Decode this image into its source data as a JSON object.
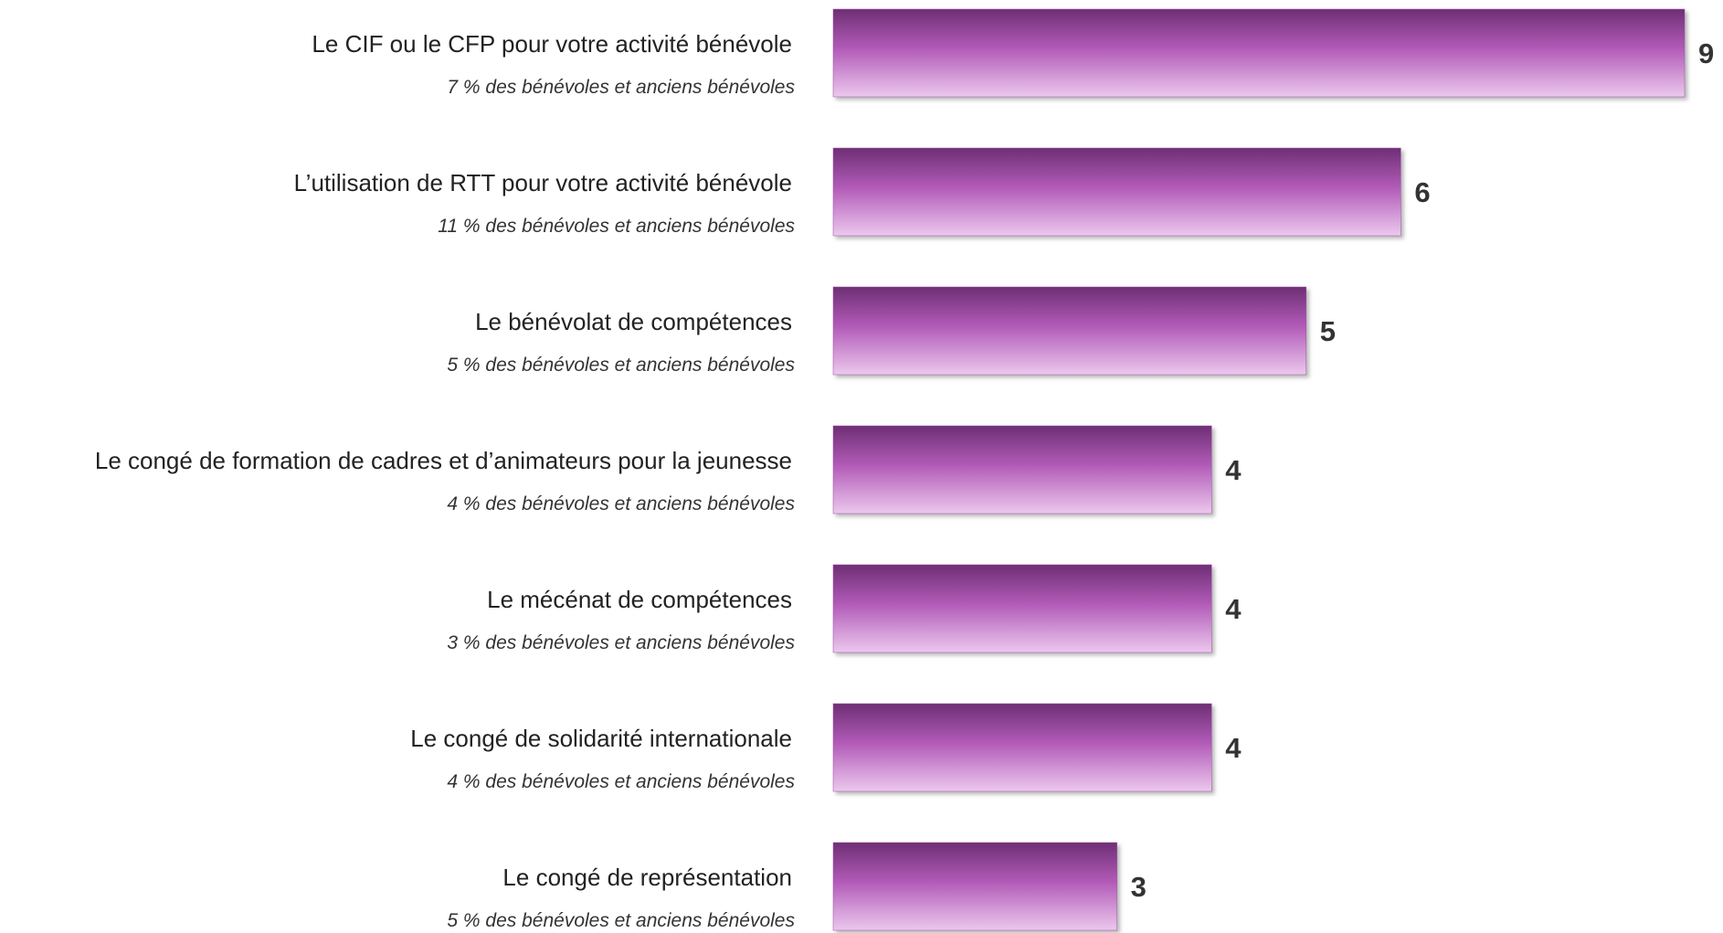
{
  "chart_data": {
    "type": "bar",
    "orientation": "horizontal",
    "categories": [
      "Le CIF ou le CFP pour votre activité bénévole",
      "L’utilisation de RTT pour votre activité bénévole",
      "Le bénévolat de compétences",
      "Le congé de formation de cadres et d’animateurs pour la jeunesse",
      "Le mécénat de compétences",
      "Le congé de solidarité internationale",
      "Le congé de représentation"
    ],
    "subtitles": [
      "7 % des bénévoles et anciens bénévoles",
      "11 % des bénévoles et anciens bénévoles",
      "5 % des bénévoles et anciens bénévoles",
      "4 % des bénévoles et anciens bénévoles",
      "3 % des bénévoles et anciens bénévoles",
      "4 % des bénévoles et anciens bénévoles",
      "5 % des bénévoles et anciens bénévoles"
    ],
    "values": [
      9,
      6,
      5,
      4,
      4,
      4,
      3
    ],
    "color": "#a24fa8"
  }
}
